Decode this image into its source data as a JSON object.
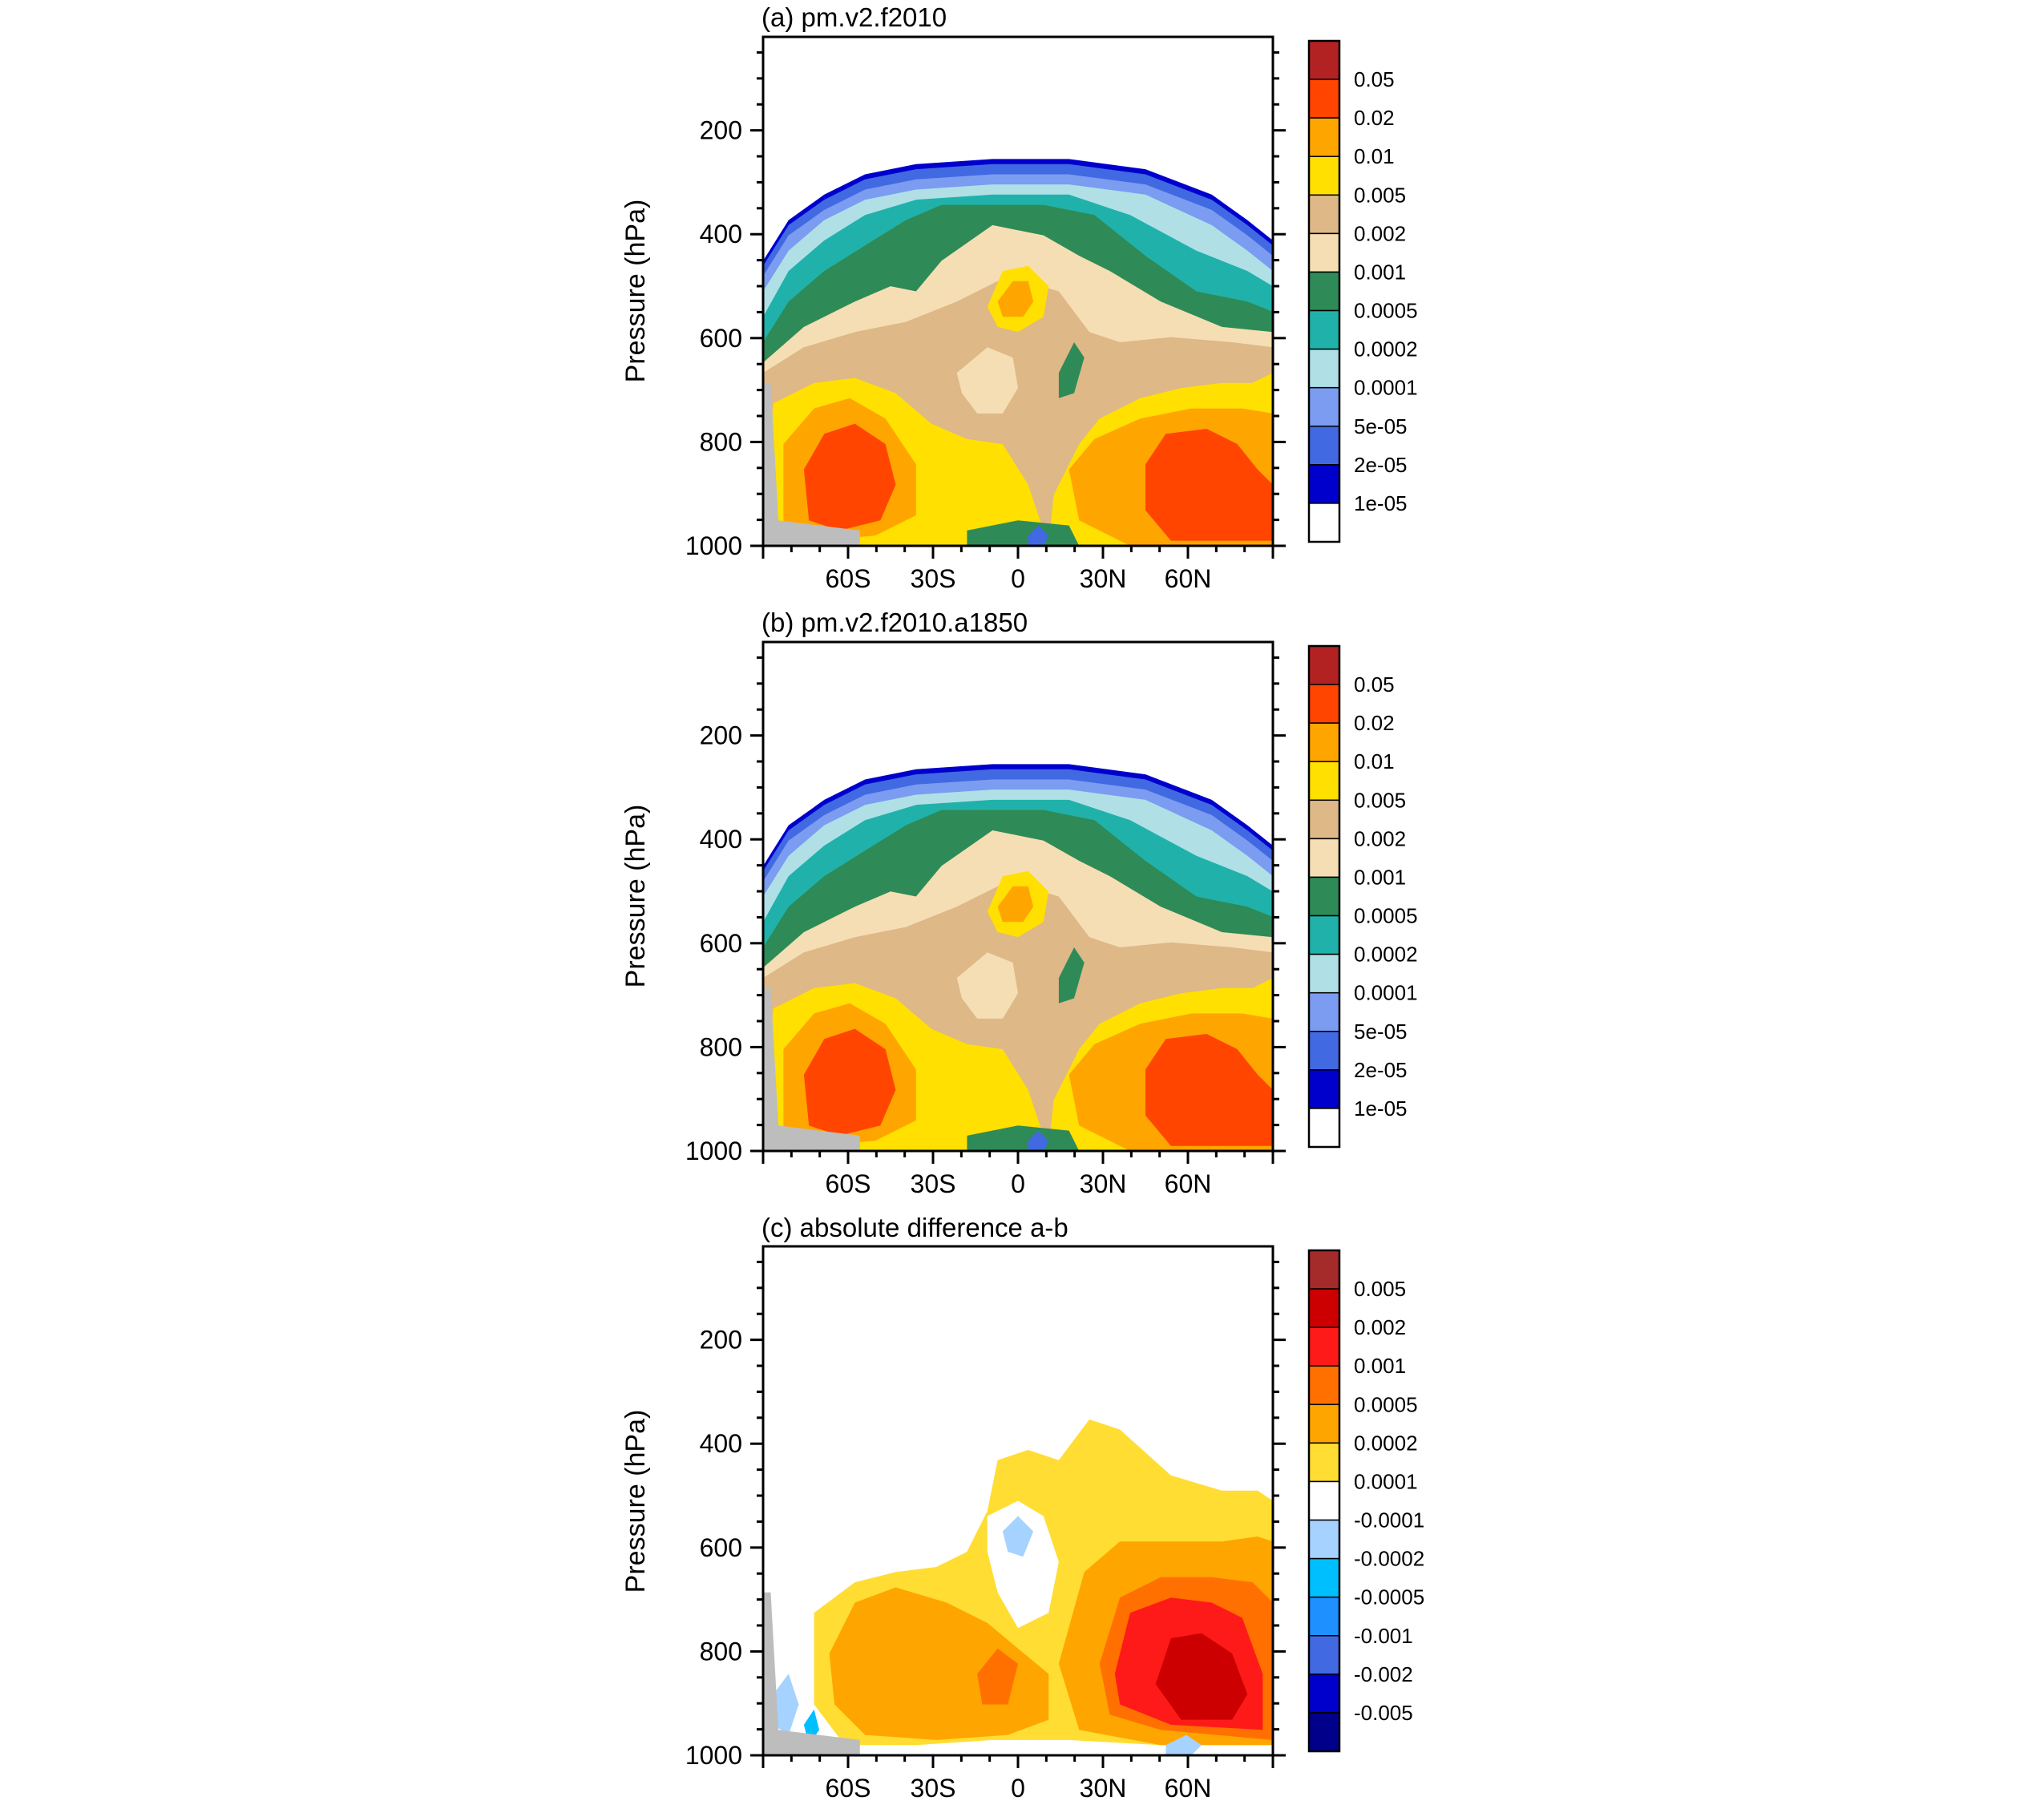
{
  "chart_data": [
    {
      "type": "heatmap",
      "panel": "a",
      "title": "(a) pm.v2.f2010",
      "ylabel": "Pressure (hPa)",
      "ylim": [
        20,
        1000
      ],
      "y_inverted": true,
      "y_ticks": [
        "200",
        "400",
        "600",
        "800",
        "1000"
      ],
      "x_range": [
        -90,
        90
      ],
      "x_ticks": [
        "60S",
        "30S",
        "0",
        "30N",
        "60N"
      ],
      "colorbar": {
        "labels": [
          "0.05",
          "0.02",
          "0.01",
          "0.005",
          "0.002",
          "0.001",
          "0.0005",
          "0.0002",
          "0.0001",
          "5e-05",
          "2e-05",
          "1e-05"
        ],
        "colors": [
          "#b22222",
          "#ff4500",
          "#ffa500",
          "#ffe000",
          "#deb887",
          "#f5deb3",
          "#2e8b57",
          "#20b2aa",
          "#b0e0e6",
          "#7b9cf0",
          "#4169e1",
          "#0000cd",
          "#ffffff"
        ]
      }
    },
    {
      "type": "heatmap",
      "panel": "b",
      "title": "(b) pm.v2.f2010.a1850",
      "ylabel": "Pressure (hPa)",
      "ylim": [
        20,
        1000
      ],
      "y_inverted": true,
      "y_ticks": [
        "200",
        "400",
        "600",
        "800",
        "1000"
      ],
      "x_range": [
        -90,
        90
      ],
      "x_ticks": [
        "60S",
        "30S",
        "0",
        "30N",
        "60N"
      ],
      "colorbar": {
        "labels": [
          "0.05",
          "0.02",
          "0.01",
          "0.005",
          "0.002",
          "0.001",
          "0.0005",
          "0.0002",
          "0.0001",
          "5e-05",
          "2e-05",
          "1e-05"
        ],
        "colors": [
          "#b22222",
          "#ff4500",
          "#ffa500",
          "#ffe000",
          "#deb887",
          "#f5deb3",
          "#2e8b57",
          "#20b2aa",
          "#b0e0e6",
          "#7b9cf0",
          "#4169e1",
          "#0000cd",
          "#ffffff"
        ]
      }
    },
    {
      "type": "heatmap",
      "panel": "c",
      "title": "(c) absolute difference a-b",
      "ylabel": "Pressure (hPa)",
      "ylim": [
        20,
        1000
      ],
      "y_inverted": true,
      "y_ticks": [
        "200",
        "400",
        "600",
        "800",
        "1000"
      ],
      "x_range": [
        -90,
        90
      ],
      "x_ticks": [
        "60S",
        "30S",
        "0",
        "30N",
        "60N"
      ],
      "colorbar": {
        "labels": [
          "0.005",
          "0.002",
          "0.001",
          "0.0005",
          "0.0002",
          "0.0001",
          "-0.0001",
          "-0.0002",
          "-0.0005",
          "-0.001",
          "-0.002",
          "-0.005"
        ],
        "colors": [
          "#a52a2a",
          "#cc0000",
          "#ff1a1a",
          "#ff7000",
          "#ffa500",
          "#ffdd33",
          "#ffffff",
          "#a6d2ff",
          "#00bfff",
          "#1e90ff",
          "#4169e1",
          "#0000cd",
          "#00008b"
        ]
      }
    }
  ]
}
